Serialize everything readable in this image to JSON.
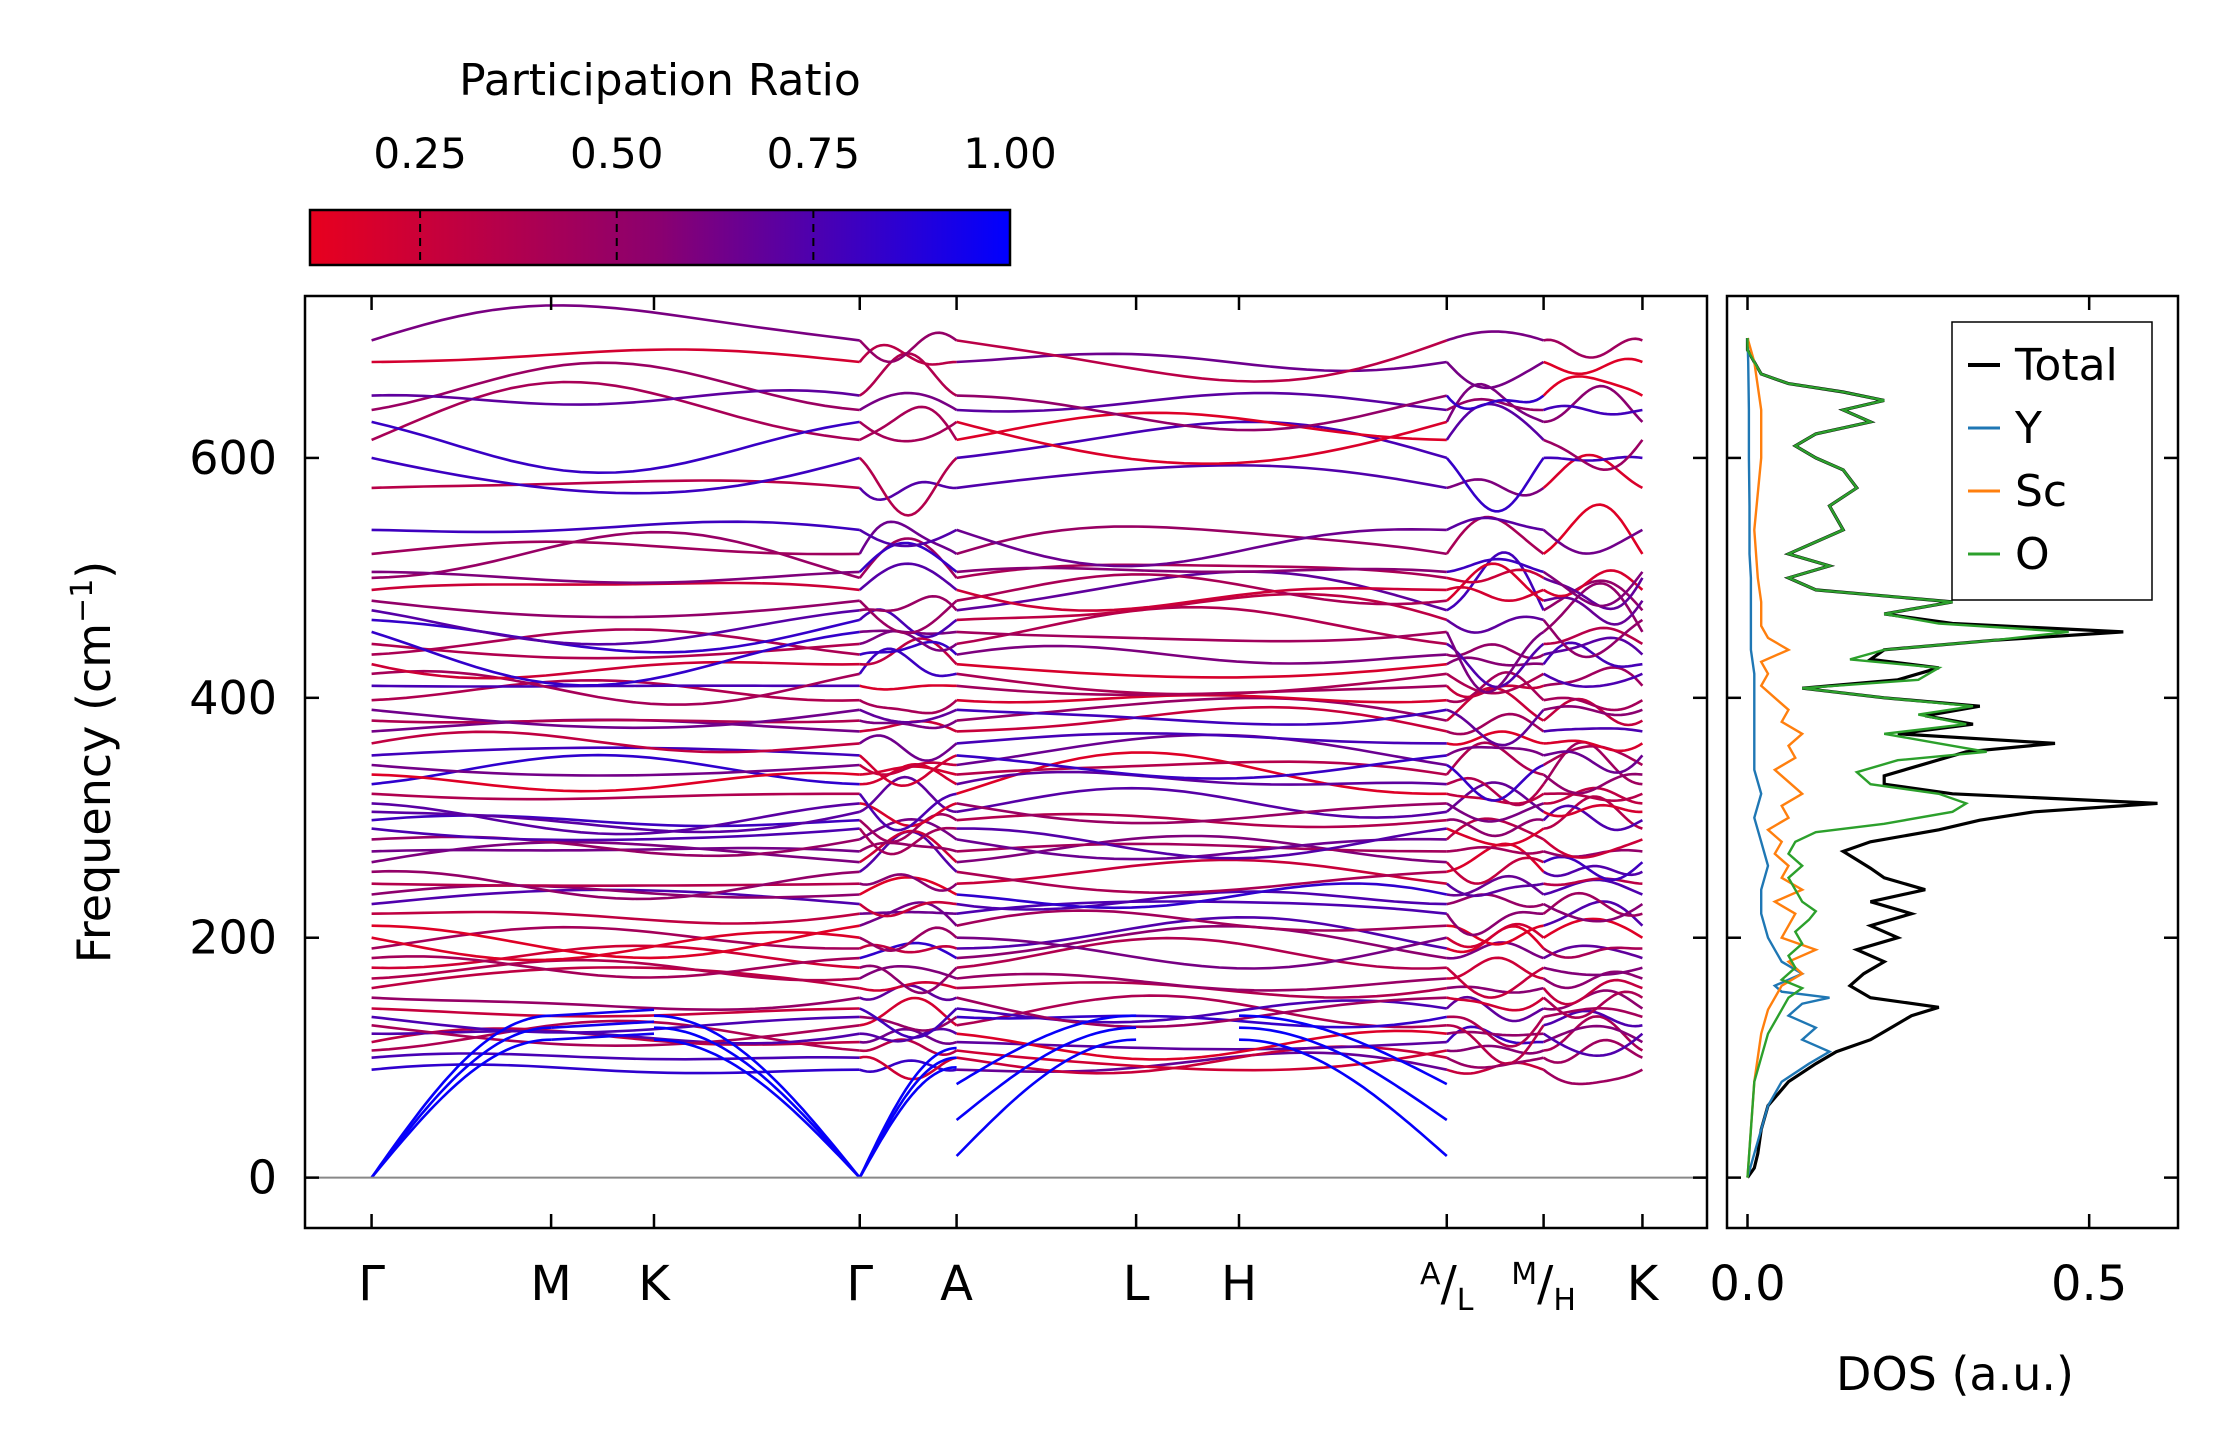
{
  "colorbar": {
    "title": "Participation Ratio",
    "ticks": [
      0.25,
      0.5,
      0.75,
      1.0
    ],
    "tick_labels": [
      "0.25",
      "0.50",
      "0.75",
      "1.00"
    ],
    "range": [
      0.11,
      1.0
    ],
    "color_low": "#e8001e",
    "color_mid": "#8a0070",
    "color_high": "#0000ff"
  },
  "chart_data": [
    {
      "type": "line",
      "name": "phonon-band-structure",
      "ylabel_main": "Frequency (cm",
      "ylabel_sup": "−1",
      "ylabel_end": ")",
      "ylim": [
        -42,
        735
      ],
      "y_ticks": [
        0,
        200,
        400,
        600
      ],
      "y_tick_labels": [
        "0",
        "200",
        "400",
        "600"
      ],
      "zero_line_color": "#888888",
      "x_ticks": [
        {
          "x": 0.0,
          "label": "Γ"
        },
        {
          "x": 0.89,
          "label": "M"
        },
        {
          "x": 1.4,
          "label": "K"
        },
        {
          "x": 2.42,
          "label": "Γ"
        },
        {
          "x": 2.9,
          "label": "A"
        },
        {
          "x": 3.79,
          "label": "L"
        },
        {
          "x": 4.3,
          "label": "H"
        }
      ],
      "x_ticks_fraction": [
        {
          "x": 5.33,
          "num": "A",
          "den": "L"
        },
        {
          "x": 5.81,
          "num": "M",
          "den": "H"
        }
      ],
      "x_tick_last": {
        "x": 6.3,
        "label": "K"
      },
      "xlim": [
        -0.33,
        6.62
      ],
      "segments": [
        {
          "x": [
            0.0,
            2.42
          ],
          "acoustic_end": "gamma_right"
        },
        {
          "x": [
            2.42,
            2.9
          ]
        },
        {
          "x": [
            2.9,
            5.33
          ],
          "acoustic_end": "A"
        },
        {
          "x": [
            5.33,
            5.81
          ]
        },
        {
          "x": [
            5.81,
            6.3
          ]
        }
      ],
      "optical_band_levels": [
        90,
        100,
        106,
        113,
        120,
        127,
        134,
        141,
        150,
        158,
        166,
        175,
        183,
        191,
        200,
        210,
        220,
        228,
        236,
        245,
        255,
        263,
        272,
        282,
        291,
        298,
        305,
        312,
        320,
        328,
        336,
        344,
        352,
        362,
        372,
        381,
        390,
        398,
        410,
        420,
        428,
        436,
        445,
        455,
        465,
        473,
        481,
        490,
        500,
        505,
        520,
        540,
        575,
        600,
        615,
        630,
        640,
        652,
        680,
        698
      ],
      "acoustic_gamma_freq": 0,
      "acoustic_zone_boundary_freq": [
        115,
        125,
        135
      ]
    },
    {
      "type": "line",
      "name": "density-of-states",
      "xlabel": "DOS (a.u.)",
      "xlim": [
        -0.03,
        0.63
      ],
      "x_ticks": [
        0.0,
        0.5
      ],
      "x_tick_labels": [
        "0.0",
        "0.5"
      ],
      "series": [
        {
          "name": "Total",
          "color": "#000000",
          "z": 1,
          "freq": [
            0,
            8,
            20,
            40,
            60,
            80,
            95,
            105,
            115,
            125,
            135,
            142,
            150,
            160,
            170,
            180,
            190,
            200,
            210,
            220,
            230,
            240,
            250,
            258,
            265,
            272,
            280,
            290,
            298,
            305,
            312,
            320,
            328,
            335,
            345,
            355,
            362,
            370,
            378,
            385,
            393,
            400,
            408,
            415,
            425,
            432,
            440,
            448,
            455,
            462,
            470,
            480,
            490,
            500,
            510,
            520,
            540,
            560,
            575,
            590,
            600,
            610,
            620,
            630,
            640,
            648,
            655,
            662,
            670,
            680,
            690,
            700
          ],
          "value": [
            0.0,
            0.01,
            0.015,
            0.02,
            0.03,
            0.06,
            0.1,
            0.13,
            0.18,
            0.21,
            0.24,
            0.28,
            0.18,
            0.15,
            0.17,
            0.2,
            0.16,
            0.22,
            0.18,
            0.24,
            0.18,
            0.26,
            0.2,
            0.18,
            0.16,
            0.14,
            0.18,
            0.28,
            0.34,
            0.42,
            0.6,
            0.3,
            0.2,
            0.2,
            0.26,
            0.32,
            0.45,
            0.22,
            0.33,
            0.26,
            0.34,
            0.2,
            0.08,
            0.22,
            0.28,
            0.18,
            0.2,
            0.36,
            0.55,
            0.3,
            0.2,
            0.3,
            0.1,
            0.06,
            0.12,
            0.06,
            0.14,
            0.12,
            0.16,
            0.14,
            0.1,
            0.07,
            0.1,
            0.18,
            0.14,
            0.2,
            0.14,
            0.06,
            0.02,
            0.01,
            0.0,
            0.0
          ]
        },
        {
          "name": "Y",
          "color": "#1f77b4",
          "z": 2,
          "freq": [
            0,
            20,
            40,
            60,
            80,
            95,
            105,
            115,
            125,
            135,
            145,
            150,
            155,
            160,
            170,
            180,
            190,
            200,
            220,
            240,
            260,
            280,
            300,
            320,
            340,
            360,
            380,
            400,
            420,
            440,
            460,
            480,
            500,
            520,
            560,
            600,
            640,
            680,
            700
          ],
          "value": [
            0.0,
            0.01,
            0.02,
            0.03,
            0.05,
            0.09,
            0.12,
            0.08,
            0.1,
            0.06,
            0.08,
            0.12,
            0.05,
            0.04,
            0.08,
            0.05,
            0.04,
            0.03,
            0.02,
            0.02,
            0.03,
            0.02,
            0.01,
            0.02,
            0.01,
            0.01,
            0.01,
            0.01,
            0.01,
            0.005,
            0.005,
            0.005,
            0.005,
            0.003,
            0.003,
            0.002,
            0.002,
            0.001,
            0.0
          ]
        },
        {
          "name": "Sc",
          "color": "#ff7f0e",
          "z": 3,
          "freq": [
            0,
            40,
            80,
            120,
            140,
            160,
            170,
            180,
            190,
            200,
            210,
            220,
            230,
            240,
            250,
            260,
            270,
            280,
            290,
            300,
            310,
            320,
            330,
            340,
            350,
            360,
            370,
            380,
            390,
            400,
            410,
            420,
            430,
            440,
            450,
            460,
            480,
            500,
            540,
            600,
            640,
            680,
            700
          ],
          "value": [
            0.0,
            0.005,
            0.01,
            0.02,
            0.03,
            0.05,
            0.08,
            0.06,
            0.1,
            0.05,
            0.06,
            0.07,
            0.04,
            0.08,
            0.05,
            0.06,
            0.04,
            0.05,
            0.03,
            0.06,
            0.05,
            0.08,
            0.06,
            0.04,
            0.07,
            0.06,
            0.08,
            0.05,
            0.06,
            0.04,
            0.02,
            0.03,
            0.02,
            0.06,
            0.03,
            0.02,
            0.02,
            0.015,
            0.01,
            0.02,
            0.02,
            0.01,
            0.0
          ]
        },
        {
          "name": "O",
          "color": "#2ca02c",
          "z": 4,
          "freq": [
            0,
            40,
            80,
            120,
            140,
            150,
            158,
            165,
            175,
            185,
            195,
            205,
            215,
            222,
            230,
            240,
            250,
            260,
            270,
            280,
            288,
            295,
            305,
            312,
            320,
            328,
            338,
            348,
            355,
            362,
            370,
            378,
            386,
            393,
            400,
            408,
            415,
            425,
            432,
            440,
            448,
            455,
            462,
            470,
            480,
            490,
            500,
            510,
            520,
            540,
            560,
            575,
            590,
            600,
            610,
            620,
            630,
            640,
            648,
            655,
            662,
            670,
            680,
            690,
            700
          ],
          "value": [
            0.0,
            0.005,
            0.01,
            0.03,
            0.05,
            0.06,
            0.08,
            0.05,
            0.07,
            0.06,
            0.08,
            0.07,
            0.09,
            0.1,
            0.08,
            0.07,
            0.06,
            0.08,
            0.06,
            0.07,
            0.1,
            0.2,
            0.3,
            0.32,
            0.28,
            0.18,
            0.16,
            0.22,
            0.35,
            0.28,
            0.2,
            0.32,
            0.25,
            0.33,
            0.2,
            0.08,
            0.25,
            0.28,
            0.15,
            0.2,
            0.36,
            0.47,
            0.28,
            0.2,
            0.3,
            0.1,
            0.06,
            0.12,
            0.06,
            0.14,
            0.12,
            0.16,
            0.14,
            0.1,
            0.07,
            0.1,
            0.18,
            0.14,
            0.2,
            0.14,
            0.06,
            0.02,
            0.01,
            0.0,
            0.0
          ]
        }
      ],
      "legend": {
        "placement": "top-right",
        "entries": [
          "Total",
          "Y",
          "Sc",
          "O"
        ]
      }
    }
  ]
}
